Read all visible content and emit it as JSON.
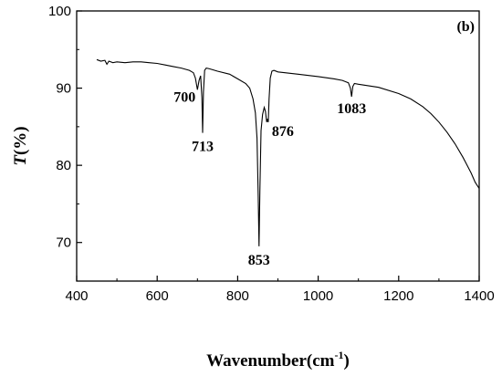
{
  "chart_data": {
    "type": "line",
    "panel_label": "(b)",
    "xlabel": "Wavenumber(cm",
    "xlabel_superscript": "-1",
    "xlabel_suffix": ")",
    "ylabel_italic": "T",
    "ylabel_rest": "(%)",
    "xlim": [
      400,
      1400
    ],
    "ylim": [
      65,
      100
    ],
    "xticks": [
      400,
      600,
      800,
      1000,
      1200,
      1400
    ],
    "yticks": [
      70,
      80,
      90,
      100
    ],
    "grid": false,
    "series": [
      {
        "x": [
          450,
          460,
          470,
          475,
          480,
          490,
          500,
          520,
          540,
          560,
          580,
          600,
          620,
          640,
          660,
          680,
          690,
          695,
          700,
          704,
          708,
          711,
          713,
          715,
          718,
          722,
          730,
          750,
          780,
          800,
          820,
          830,
          838,
          844,
          848,
          851,
          853,
          855,
          858,
          862,
          866,
          869,
          872,
          874,
          876,
          878,
          881,
          885,
          890,
          900,
          950,
          1000,
          1040,
          1060,
          1075,
          1080,
          1083,
          1086,
          1090,
          1100,
          1150,
          1200,
          1230,
          1260,
          1280,
          1300,
          1320,
          1340,
          1360,
          1380,
          1390,
          1400
        ],
        "y": [
          93.7,
          93.5,
          93.6,
          93.1,
          93.5,
          93.3,
          93.4,
          93.3,
          93.4,
          93.4,
          93.3,
          93.2,
          93.0,
          92.8,
          92.6,
          92.3,
          92.0,
          91.3,
          89.8,
          91.0,
          91.6,
          88.8,
          84.2,
          89.5,
          92.3,
          92.6,
          92.5,
          92.2,
          91.8,
          91.2,
          90.6,
          90.0,
          88.6,
          86.8,
          83.5,
          76.0,
          69.5,
          76.5,
          84.5,
          86.6,
          87.5,
          87.0,
          85.6,
          86.0,
          85.6,
          88.6,
          91.3,
          92.2,
          92.3,
          92.1,
          91.8,
          91.5,
          91.2,
          91.0,
          90.7,
          90.0,
          88.9,
          90.2,
          90.6,
          90.5,
          90.1,
          89.3,
          88.6,
          87.6,
          86.7,
          85.6,
          84.3,
          82.8,
          81.0,
          79.0,
          77.8,
          77.0
        ]
      }
    ],
    "annotations": [
      {
        "text": "700",
        "x": 700,
        "y": 89.8
      },
      {
        "text": "713",
        "x": 713,
        "y": 84.2
      },
      {
        "text": "853",
        "x": 853,
        "y": 69.5
      },
      {
        "text": "876",
        "x": 876,
        "y": 85.6
      },
      {
        "text": "1083",
        "x": 1083,
        "y": 88.9
      }
    ]
  }
}
